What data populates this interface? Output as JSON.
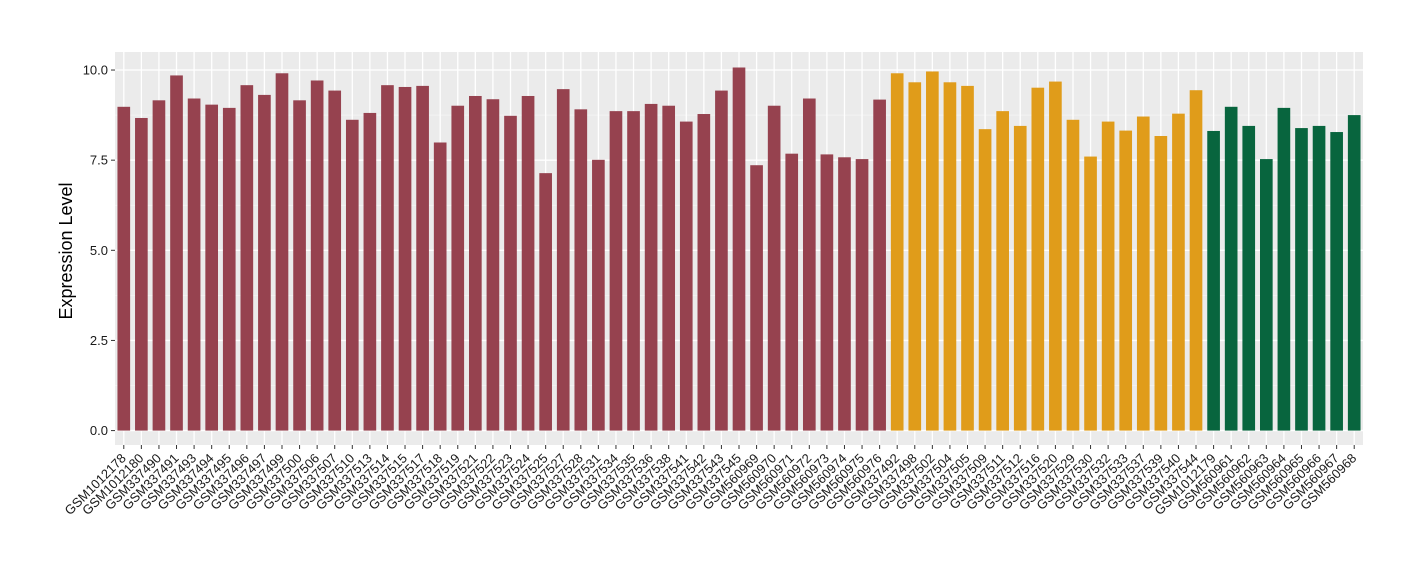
{
  "chart_data": {
    "type": "bar",
    "title": "",
    "xlabel": "",
    "ylabel": "Expression Level",
    "ylim": [
      -0.4,
      10.5
    ],
    "yticks": [
      0.0,
      2.5,
      5.0,
      7.5,
      10.0
    ],
    "ytick_labels": [
      "0.0",
      "2.5",
      "5.0",
      "7.5",
      "10.0"
    ],
    "grid": true,
    "legend": "none",
    "colors": [
      "#96424f",
      "#e09c1a",
      "#08653e"
    ],
    "categories": [
      "GSM1012178",
      "GSM1012180",
      "GSM337490",
      "GSM337491",
      "GSM337493",
      "GSM337494",
      "GSM337495",
      "GSM337496",
      "GSM337497",
      "GSM337499",
      "GSM337500",
      "GSM337506",
      "GSM337507",
      "GSM337510",
      "GSM337513",
      "GSM337514",
      "GSM337515",
      "GSM337517",
      "GSM337518",
      "GSM337519",
      "GSM337521",
      "GSM337522",
      "GSM337523",
      "GSM337524",
      "GSM337525",
      "GSM337527",
      "GSM337528",
      "GSM337531",
      "GSM337534",
      "GSM337535",
      "GSM337536",
      "GSM337538",
      "GSM337541",
      "GSM337542",
      "GSM337543",
      "GSM337545",
      "GSM560969",
      "GSM560970",
      "GSM560971",
      "GSM560972",
      "GSM560973",
      "GSM560974",
      "GSM560975",
      "GSM560976",
      "GSM337492",
      "GSM337498",
      "GSM337502",
      "GSM337504",
      "GSM337505",
      "GSM337509",
      "GSM337511",
      "GSM337512",
      "GSM337516",
      "GSM337520",
      "GSM337529",
      "GSM337530",
      "GSM337532",
      "GSM337533",
      "GSM337537",
      "GSM337539",
      "GSM337540",
      "GSM337544",
      "GSM1012179",
      "GSM560961",
      "GSM560962",
      "GSM560963",
      "GSM560964",
      "GSM560965",
      "GSM560966",
      "GSM560967",
      "GSM560968"
    ],
    "values": [
      8.98,
      8.67,
      9.16,
      9.85,
      9.21,
      9.04,
      8.95,
      9.58,
      9.31,
      9.91,
      9.16,
      9.71,
      9.43,
      8.62,
      8.81,
      9.58,
      9.53,
      9.56,
      7.99,
      9.01,
      9.28,
      9.19,
      8.73,
      9.28,
      7.14,
      9.47,
      8.91,
      7.51,
      8.86,
      8.86,
      9.06,
      9.01,
      8.57,
      8.78,
      9.43,
      10.07,
      7.36,
      9.01,
      7.68,
      9.21,
      7.66,
      7.58,
      7.53,
      9.18,
      9.91,
      9.66,
      9.96,
      9.66,
      9.56,
      8.36,
      8.86,
      8.45,
      9.51,
      9.68,
      8.62,
      7.6,
      8.57,
      8.32,
      8.71,
      8.17,
      8.79,
      9.44,
      8.31,
      8.98,
      8.45,
      7.53,
      8.95,
      8.39,
      8.45,
      8.28,
      8.75
    ],
    "group_colors": [
      "#96424f",
      "#96424f",
      "#96424f",
      "#96424f",
      "#96424f",
      "#96424f",
      "#96424f",
      "#96424f",
      "#96424f",
      "#96424f",
      "#96424f",
      "#96424f",
      "#96424f",
      "#96424f",
      "#96424f",
      "#96424f",
      "#96424f",
      "#96424f",
      "#96424f",
      "#96424f",
      "#96424f",
      "#96424f",
      "#96424f",
      "#96424f",
      "#96424f",
      "#96424f",
      "#96424f",
      "#96424f",
      "#96424f",
      "#96424f",
      "#96424f",
      "#96424f",
      "#96424f",
      "#96424f",
      "#96424f",
      "#96424f",
      "#96424f",
      "#96424f",
      "#96424f",
      "#96424f",
      "#96424f",
      "#96424f",
      "#96424f",
      "#96424f",
      "#e09c1a",
      "#e09c1a",
      "#e09c1a",
      "#e09c1a",
      "#e09c1a",
      "#e09c1a",
      "#e09c1a",
      "#e09c1a",
      "#e09c1a",
      "#e09c1a",
      "#e09c1a",
      "#e09c1a",
      "#e09c1a",
      "#e09c1a",
      "#e09c1a",
      "#e09c1a",
      "#e09c1a",
      "#e09c1a",
      "#08653e",
      "#08653e",
      "#08653e",
      "#08653e",
      "#08653e",
      "#08653e",
      "#08653e",
      "#08653e",
      "#08653e"
    ]
  }
}
